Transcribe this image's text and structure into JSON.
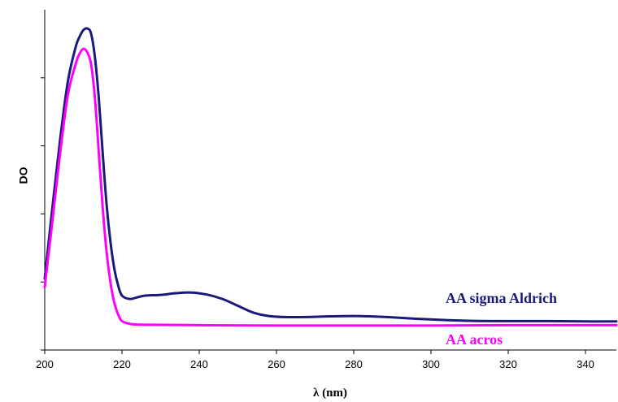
{
  "chart_data": {
    "type": "line",
    "title": "",
    "xlabel": "λ (nm)",
    "ylabel": "DO",
    "xlim": [
      200,
      348
    ],
    "ylim": [
      0,
      1.0
    ],
    "x_ticks": [
      200,
      220,
      240,
      260,
      280,
      300,
      320,
      340
    ],
    "y_ticks": [
      0,
      0.2,
      0.4,
      0.6,
      0.8
    ],
    "y_tick_labels_shown": false,
    "grid": false,
    "series": [
      {
        "name": "AA sigma Aldrich",
        "color": "#1a1a7a",
        "points": [
          [
            200,
            0.21
          ],
          [
            202,
            0.42
          ],
          [
            204,
            0.62
          ],
          [
            206,
            0.79
          ],
          [
            208,
            0.89
          ],
          [
            209,
            0.92
          ],
          [
            210,
            0.94
          ],
          [
            211,
            0.945
          ],
          [
            212,
            0.93
          ],
          [
            213,
            0.86
          ],
          [
            214,
            0.74
          ],
          [
            215,
            0.58
          ],
          [
            216,
            0.43
          ],
          [
            217,
            0.32
          ],
          [
            218,
            0.24
          ],
          [
            219,
            0.19
          ],
          [
            220,
            0.16
          ],
          [
            222,
            0.15
          ],
          [
            224,
            0.155
          ],
          [
            226,
            0.16
          ],
          [
            230,
            0.162
          ],
          [
            234,
            0.167
          ],
          [
            238,
            0.169
          ],
          [
            242,
            0.163
          ],
          [
            246,
            0.15
          ],
          [
            250,
            0.13
          ],
          [
            254,
            0.11
          ],
          [
            258,
            0.1
          ],
          [
            262,
            0.097
          ],
          [
            268,
            0.097
          ],
          [
            274,
            0.099
          ],
          [
            280,
            0.1
          ],
          [
            284,
            0.099
          ],
          [
            290,
            0.096
          ],
          [
            296,
            0.092
          ],
          [
            302,
            0.089
          ],
          [
            310,
            0.086
          ],
          [
            320,
            0.085
          ],
          [
            330,
            0.085
          ],
          [
            340,
            0.084
          ],
          [
            348,
            0.084
          ]
        ]
      },
      {
        "name": "AA acros",
        "color": "#ff00ff",
        "points": [
          [
            200,
            0.185
          ],
          [
            202,
            0.38
          ],
          [
            204,
            0.58
          ],
          [
            206,
            0.75
          ],
          [
            208,
            0.84
          ],
          [
            209,
            0.87
          ],
          [
            210,
            0.885
          ],
          [
            211,
            0.875
          ],
          [
            212,
            0.84
          ],
          [
            213,
            0.74
          ],
          [
            214,
            0.58
          ],
          [
            215,
            0.42
          ],
          [
            216,
            0.29
          ],
          [
            217,
            0.2
          ],
          [
            218,
            0.14
          ],
          [
            219,
            0.105
          ],
          [
            220,
            0.085
          ],
          [
            222,
            0.077
          ],
          [
            224,
            0.075
          ],
          [
            230,
            0.074
          ],
          [
            240,
            0.073
          ],
          [
            260,
            0.072
          ],
          [
            280,
            0.072
          ],
          [
            300,
            0.072
          ],
          [
            320,
            0.073
          ],
          [
            340,
            0.073
          ],
          [
            348,
            0.073
          ]
        ]
      }
    ]
  }
}
